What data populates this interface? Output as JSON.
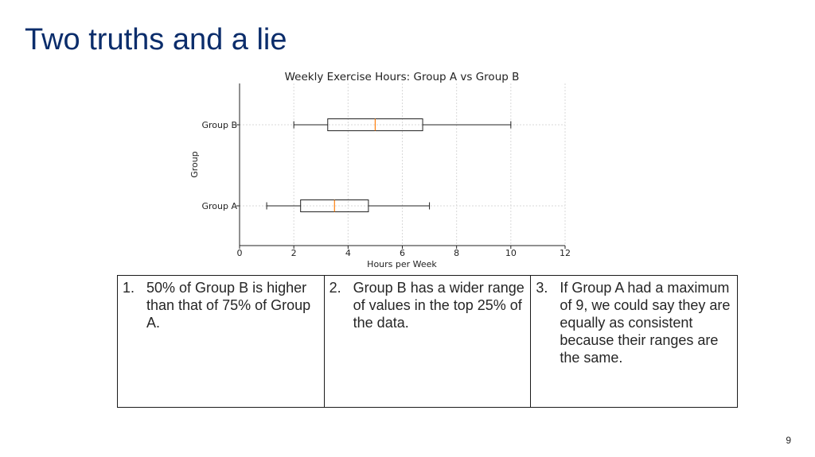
{
  "slide": {
    "title": "Two truths and a lie",
    "title_color": "#0b2d6b",
    "page_number": "9"
  },
  "chart_data": {
    "type": "boxplot",
    "orientation": "horizontal",
    "title": "Weekly Exercise Hours: Group A vs Group B",
    "xlabel": "Hours per Week",
    "ylabel": "Group",
    "xlim": [
      0,
      12
    ],
    "xticks": [
      0,
      2,
      4,
      6,
      8,
      10,
      12
    ],
    "grid": true,
    "median_color": "#ff7f0e",
    "series": [
      {
        "name": "Group A",
        "min": 1,
        "q1": 2.25,
        "median": 3.5,
        "q3": 4.75,
        "max": 7
      },
      {
        "name": "Group B",
        "min": 2,
        "q1": 3.25,
        "median": 5,
        "q3": 6.75,
        "max": 10
      }
    ]
  },
  "statements": [
    {
      "num": "1.",
      "text": "50% of Group B is higher than that of 75% of Group A."
    },
    {
      "num": "2.",
      "text": "Group B has a wider range of values in the top 25% of the data."
    },
    {
      "num": "3.",
      "text": "If Group A had a maximum of 9, we could say they are equally as consistent because their ranges are the same."
    }
  ]
}
